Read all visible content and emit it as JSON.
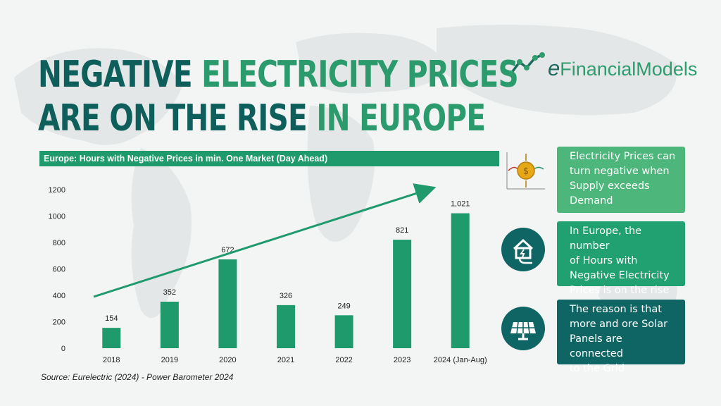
{
  "title": {
    "part1": "NEGATIVE",
    "part2": "ELECTRICITY PRICES",
    "part3": "ARE ON THE RISE",
    "part4": "IN EUROPE"
  },
  "logo": {
    "e": "e",
    "rest": "FinancialModels"
  },
  "chart_header": "Europe: Hours with Negative Prices in min. One Market (Day Ahead)",
  "source": "Source: Eurelectric (2024) - Power Barometer 2024",
  "chart_data": {
    "type": "bar",
    "title": "Europe: Hours with Negative Prices in min. One Market (Day Ahead)",
    "categories": [
      "2018",
      "2019",
      "2020",
      "2021",
      "2022",
      "2023",
      "2024 (Jan-Aug)"
    ],
    "values": [
      154,
      352,
      672,
      326,
      249,
      821,
      1021
    ],
    "value_labels": [
      "154",
      "352",
      "672",
      "326",
      "249",
      "821",
      "1,021"
    ],
    "yticks": [
      "0",
      "200",
      "400",
      "600",
      "800",
      "1000",
      "1200"
    ],
    "ylim": [
      0,
      1200
    ],
    "bar_color": "#1f9a6d",
    "trend_arrow_color": "#1f9a6d",
    "grid": false
  },
  "info": [
    {
      "lines": [
        "Electricity Prices can",
        "turn negative when",
        "Supply exceeds",
        "Demand"
      ]
    },
    {
      "lines": [
        "In Europe, the number",
        "of Hours with",
        "Negative Electricity",
        "Prices is on the rise"
      ]
    },
    {
      "lines": [
        "The reason is that",
        "more and ore Solar",
        "Panels are connected",
        "to the Grid"
      ]
    }
  ],
  "icons": [
    "coin-chart-icon",
    "house-electricity-icon",
    "solar-panel-icon"
  ]
}
